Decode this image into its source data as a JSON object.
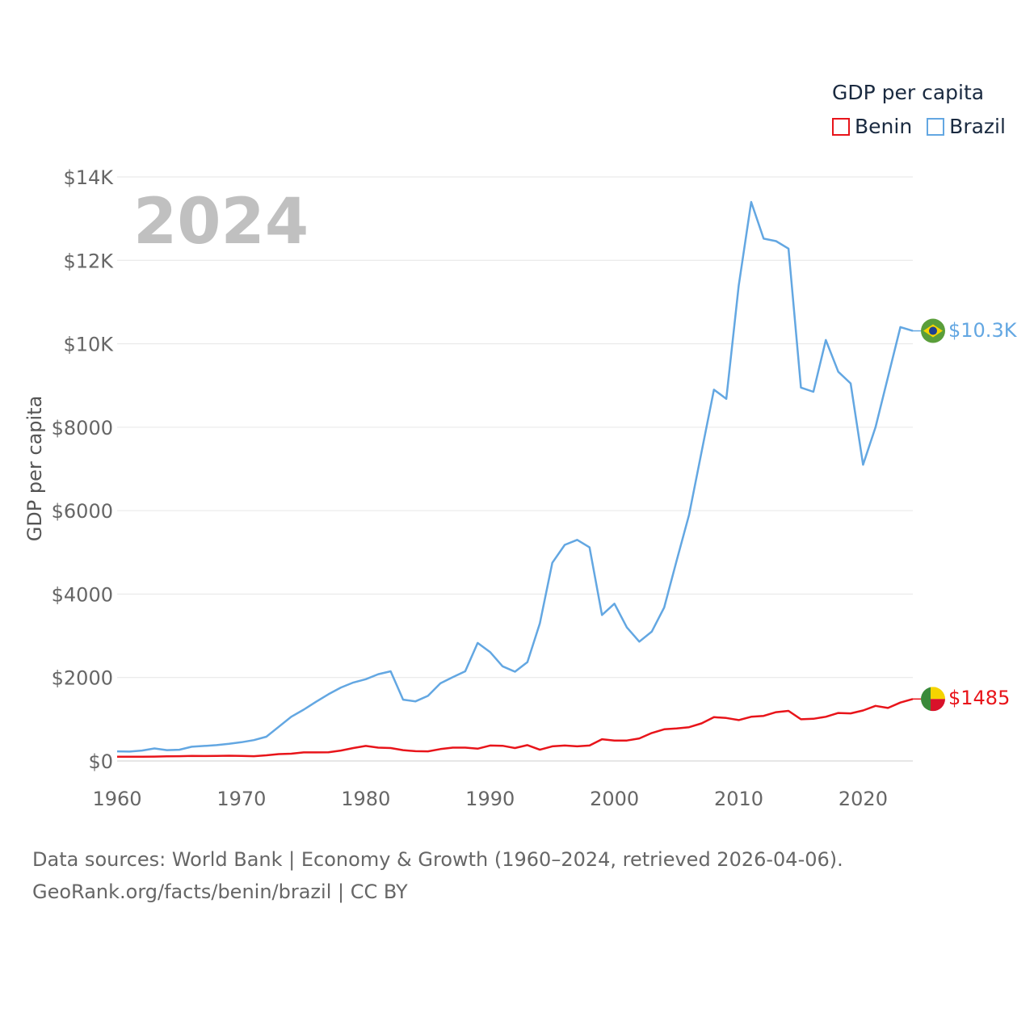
{
  "legend": {
    "title": "GDP per capita",
    "items": [
      {
        "name": "Benin",
        "color": "#e8141a"
      },
      {
        "name": "Brazil",
        "color": "#63a7e2"
      }
    ]
  },
  "year_label": "2024",
  "footer": {
    "line1": "Data sources: World Bank | Economy & Growth (1960–2024, retrieved 2026-04-06).",
    "line2": "GeoRank.org/facts/benin/brazil | CC BY"
  },
  "end_labels": {
    "brazil": "$10.3K",
    "benin": "$1485",
    "brazil_flag_icon": "brazil-flag-icon",
    "benin_flag_icon": "benin-flag-icon"
  },
  "chart_data": {
    "type": "line",
    "title": "GDP per capita",
    "xlabel": "",
    "ylabel": "GDP per capita",
    "ylim": [
      0,
      14000
    ],
    "xlim": [
      1960,
      2024
    ],
    "grid": true,
    "legend_position": "top-right",
    "x_ticks": [
      1960,
      1970,
      1980,
      1990,
      2000,
      2010,
      2020
    ],
    "x_tick_labels": [
      "1960",
      "1970",
      "1980",
      "1990",
      "2000",
      "2010",
      "2020"
    ],
    "y_ticks": [
      0,
      2000,
      4000,
      6000,
      8000,
      10000,
      12000,
      14000
    ],
    "y_tick_labels": [
      "$0",
      "$2000",
      "$4000",
      "$6000",
      "$8000",
      "$10K",
      "$12K",
      "$14K"
    ],
    "x": [
      1960,
      1961,
      1962,
      1963,
      1964,
      1965,
      1966,
      1967,
      1968,
      1969,
      1970,
      1971,
      1972,
      1973,
      1974,
      1975,
      1976,
      1977,
      1978,
      1979,
      1980,
      1981,
      1982,
      1983,
      1984,
      1985,
      1986,
      1987,
      1988,
      1989,
      1990,
      1991,
      1992,
      1993,
      1994,
      1995,
      1996,
      1997,
      1998,
      1999,
      2000,
      2001,
      2002,
      2003,
      2004,
      2005,
      2006,
      2007,
      2008,
      2009,
      2010,
      2011,
      2012,
      2013,
      2014,
      2015,
      2016,
      2017,
      2018,
      2019,
      2020,
      2021,
      2022,
      2023,
      2024
    ],
    "series": [
      {
        "name": "Brazil",
        "color": "#63a7e2",
        "values": [
          230,
          225,
          250,
          300,
          260,
          270,
          340,
          360,
          380,
          410,
          450,
          500,
          580,
          820,
          1060,
          1230,
          1420,
          1600,
          1760,
          1880,
          1960,
          2080,
          2150,
          1470,
          1430,
          1560,
          1860,
          2010,
          2150,
          2830,
          2610,
          2270,
          2140,
          2370,
          3300,
          4750,
          5180,
          5300,
          5120,
          3500,
          3770,
          3200,
          2860,
          3100,
          3680,
          4800,
          5900,
          7400,
          8900,
          8680,
          11400,
          13400,
          12520,
          12460,
          12280,
          8950,
          8850,
          10090,
          9330,
          9050,
          7100,
          8000,
          9200,
          10400,
          10310
        ]
      },
      {
        "name": "Benin",
        "color": "#e8141a",
        "values": [
          100,
          100,
          100,
          105,
          110,
          115,
          120,
          118,
          122,
          125,
          120,
          115,
          135,
          165,
          175,
          205,
          205,
          210,
          250,
          310,
          360,
          320,
          310,
          260,
          235,
          230,
          285,
          320,
          320,
          295,
          370,
          365,
          310,
          380,
          270,
          350,
          370,
          350,
          370,
          520,
          490,
          490,
          540,
          670,
          760,
          780,
          810,
          900,
          1050,
          1030,
          980,
          1060,
          1080,
          1170,
          1200,
          1000,
          1010,
          1060,
          1150,
          1140,
          1210,
          1320,
          1270,
          1400,
          1485
        ]
      }
    ]
  }
}
